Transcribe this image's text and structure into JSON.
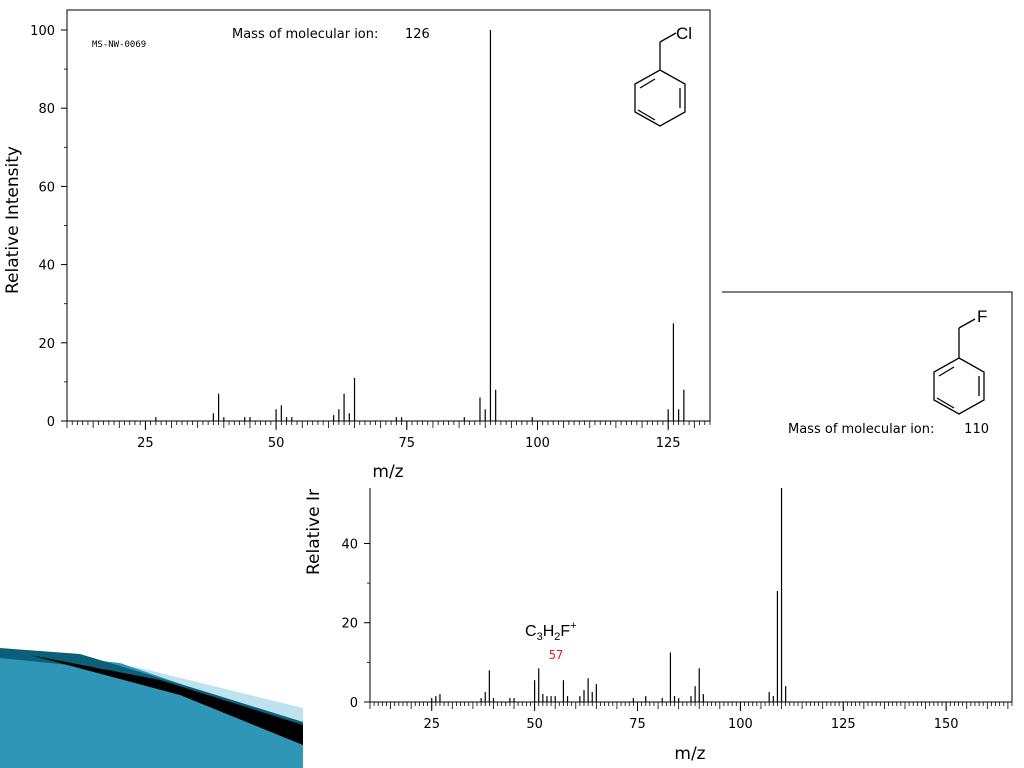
{
  "colors": {
    "annotation": "#e02020",
    "deco_dark": "#0b5f78",
    "deco_mid": "#2f96b8",
    "deco_light": "#bde3ef",
    "deco_black": "#000000"
  },
  "chart_data": [
    {
      "type": "bar",
      "id": "spectrum-1",
      "spectrum_id": "MS-NW-0069",
      "xlabel": "m/z",
      "ylabel": "Relative Intensity",
      "xlim": [
        10,
        133
      ],
      "ylim": [
        0,
        100
      ],
      "xticks": [
        25,
        50,
        75,
        100,
        125
      ],
      "yticks": [
        0,
        20,
        40,
        60,
        80,
        100
      ],
      "molecular_ion_label": "Mass of molecular ion:",
      "molecular_ion_value": "126",
      "structure": {
        "name": "benzyl chloride",
        "substituent": "Cl"
      },
      "grid": false,
      "x": [
        27,
        38,
        39,
        40,
        44,
        45,
        50,
        51,
        52,
        53,
        61,
        62,
        63,
        64,
        65,
        73,
        74,
        86,
        89,
        90,
        91,
        92,
        99,
        125,
        126,
        127,
        128
      ],
      "values": [
        1,
        2,
        7,
        1,
        1,
        1,
        3,
        4,
        1,
        1,
        1.5,
        3,
        7,
        2,
        11,
        1,
        1,
        1,
        6,
        3,
        100,
        8,
        1,
        3,
        25,
        3,
        8
      ]
    },
    {
      "type": "bar",
      "id": "spectrum-2",
      "xlabel": "m/z",
      "ylabel": "Relative Ir",
      "xlim": [
        10,
        166
      ],
      "ylim": [
        0,
        54
      ],
      "xticks": [
        25,
        50,
        75,
        100,
        125,
        150
      ],
      "yticks": [
        0,
        20,
        40
      ],
      "molecular_ion_label": "Mass of molecular ion:",
      "molecular_ion_value": "110",
      "structure": {
        "name": "benzyl fluoride",
        "substituent": "F"
      },
      "annotation": {
        "formula_parts": [
          "C",
          "3",
          "H",
          "2",
          "F",
          "+"
        ],
        "mz": "57",
        "at": 57
      },
      "grid": false,
      "x": [
        25,
        26,
        27,
        37,
        38,
        39,
        40,
        44,
        45,
        50,
        51,
        52,
        53,
        54,
        55,
        57,
        58,
        61,
        62,
        63,
        64,
        65,
        74,
        77,
        81,
        83,
        84,
        85,
        88,
        89,
        90,
        91,
        107,
        108,
        109,
        110,
        111
      ],
      "values": [
        1,
        1.5,
        2,
        1,
        2.5,
        8,
        1,
        1,
        1,
        5.5,
        8.5,
        2,
        1.5,
        1.5,
        1.5,
        5.5,
        1.5,
        1.5,
        3,
        6,
        2.5,
        4.5,
        1,
        1.5,
        1,
        12.5,
        1.5,
        1,
        1.5,
        4,
        8.5,
        2,
        2.5,
        1.5,
        28,
        54,
        4
      ]
    }
  ]
}
